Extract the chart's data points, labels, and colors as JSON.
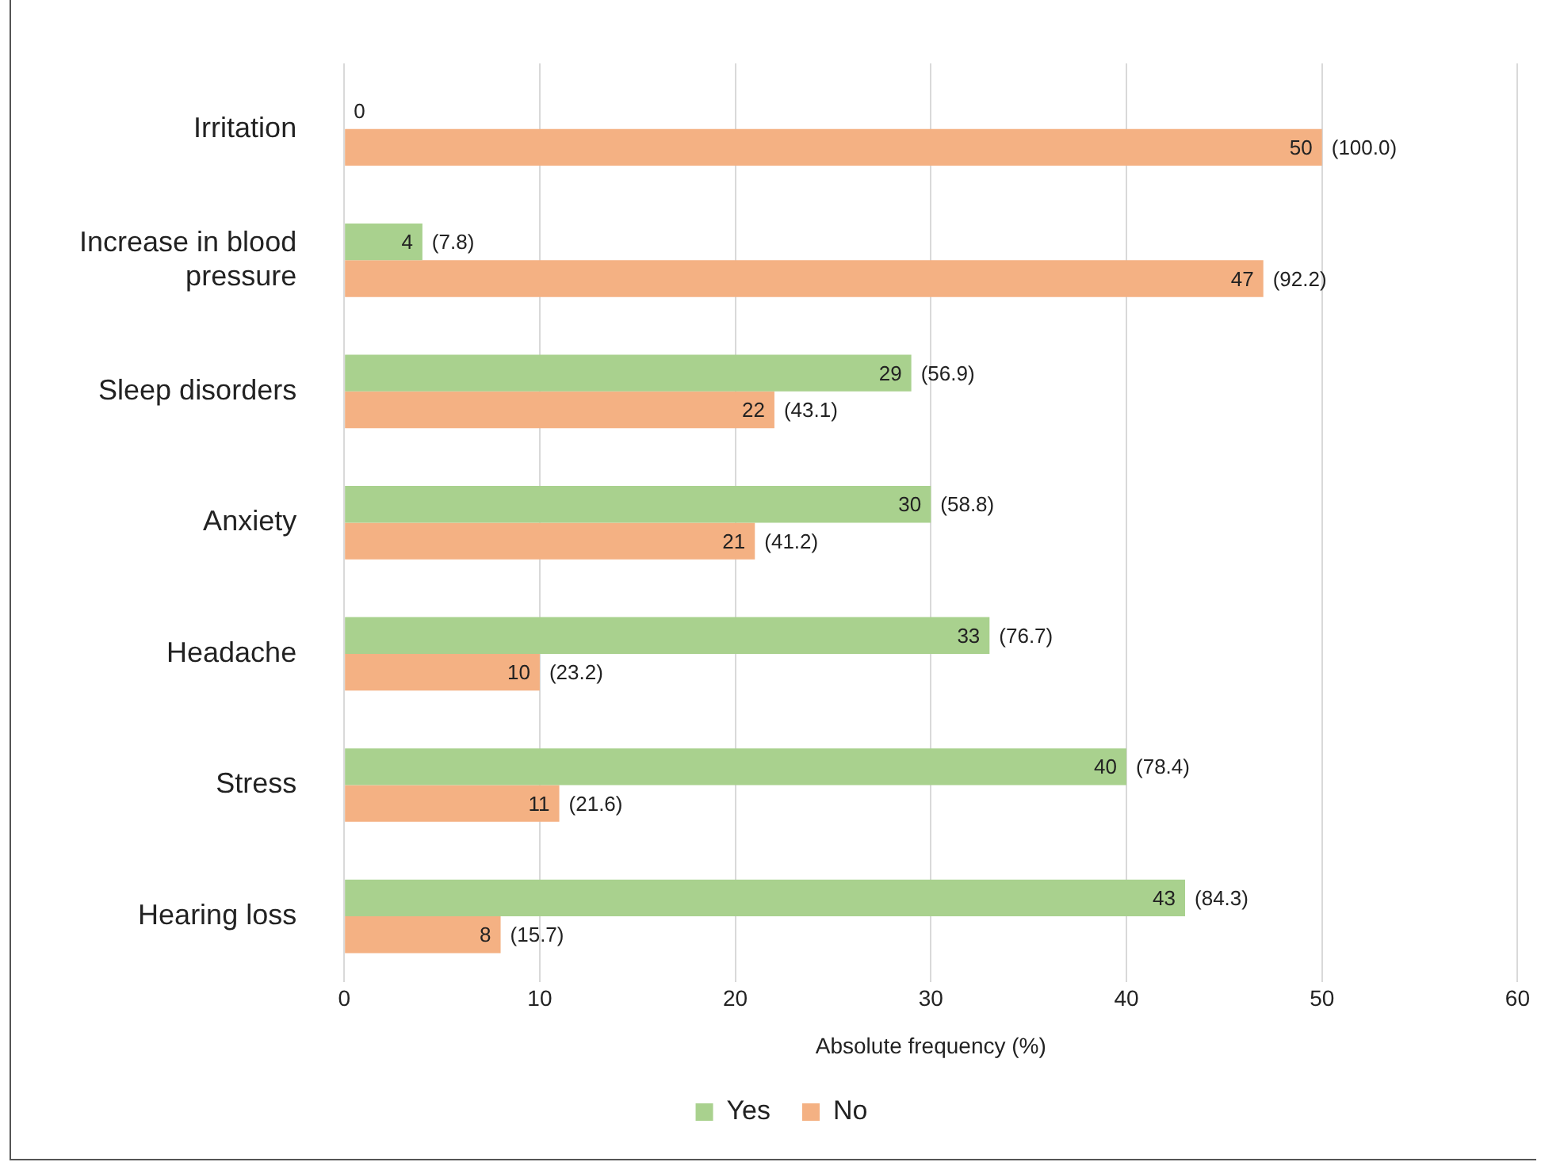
{
  "chart_data": {
    "type": "bar",
    "orientation": "horizontal",
    "xlabel": "Absolute frequency (%)",
    "categories": [
      "Irritation",
      "Increase in blood pressure",
      "Sleep disorders",
      "Anxiety",
      "Headache",
      "Stress",
      "Hearing loss"
    ],
    "series": [
      {
        "name": "Yes",
        "color": "#a9d18e",
        "values": [
          0,
          4,
          29,
          30,
          33,
          40,
          43
        ],
        "value_labels": [
          "0",
          "4 (7.8)",
          "29 (56.9)",
          "30 (58.8)",
          "33 (76.7)",
          "40 (78.4)",
          "43 (84.3)"
        ]
      },
      {
        "name": "No",
        "color": "#f4b183",
        "values": [
          50,
          47,
          22,
          21,
          10,
          11,
          8
        ],
        "value_labels": [
          "50 (100.0)",
          "47 (92.2)",
          "22 (43.1)",
          "21 (41.2)",
          "10 (23.2)",
          "11 (21.6)",
          "8 (15.7)"
        ]
      }
    ],
    "xlim": [
      0,
      60
    ],
    "xticks": [
      0,
      10,
      20,
      30,
      40,
      50,
      60
    ],
    "grid": "x",
    "legend": "bottom"
  }
}
